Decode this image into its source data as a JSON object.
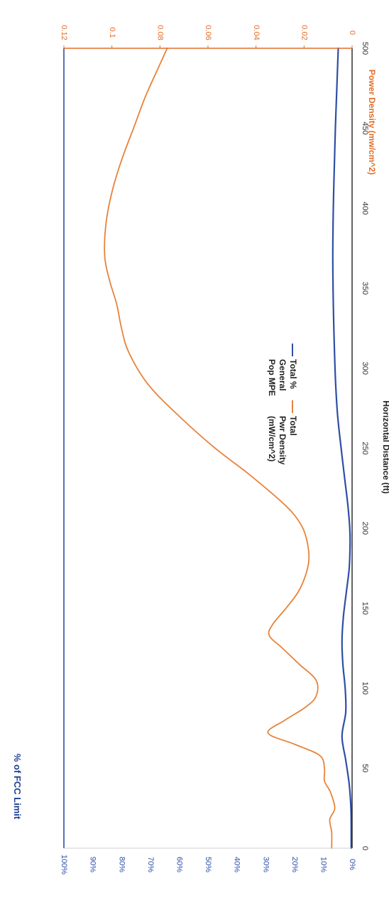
{
  "chart_data": {
    "type": "line",
    "xlabel": "Horizontal Distance (ft)",
    "ylabel_left": "% of FCC Limit",
    "ylabel_right": "Power Density (mw/cm^2)",
    "xlim": [
      0,
      500
    ],
    "ylim_left": [
      0,
      100
    ],
    "ylim_right": [
      0,
      0.12
    ],
    "x_ticks": [
      "0",
      "50",
      "100",
      "150",
      "200",
      "250",
      "300",
      "350",
      "400",
      "450",
      "500"
    ],
    "y_left_ticks": [
      "0%",
      "10%",
      "20%",
      "30%",
      "40%",
      "50%",
      "60%",
      "70%",
      "80%",
      "90%",
      "100%"
    ],
    "y_right_ticks": [
      "0",
      "0.02",
      "0.04",
      "0.06",
      "0.08",
      "0.1",
      "0.12"
    ],
    "legend_position": "top",
    "series": [
      {
        "name_lines": [
          "Total %",
          "General",
          "Pop MPE"
        ],
        "axis": "left",
        "color": "#2e4fa3",
        "x": [
          0,
          10,
          25,
          40,
          55,
          70,
          85,
          100,
          115,
          130,
          145,
          160,
          175,
          190,
          200,
          215,
          230,
          250,
          270,
          290,
          310,
          330,
          350,
          370,
          390,
          410,
          430,
          450,
          470,
          490,
          500
        ],
        "y": [
          0.3,
          0.3,
          0.4,
          1.0,
          2.2,
          3.5,
          2.2,
          2.4,
          3.2,
          3.5,
          3.0,
          2.0,
          1.0,
          0.7,
          0.8,
          1.5,
          2.5,
          3.8,
          5.0,
          5.7,
          6.1,
          6.4,
          6.6,
          6.7,
          6.6,
          6.4,
          6.1,
          5.8,
          5.4,
          5.0,
          4.8
        ]
      },
      {
        "name_lines": [
          "Total",
          "Pwr Density",
          "(mW/cm^2)"
        ],
        "axis": "right",
        "color": "#e8833a",
        "x": [
          0,
          10,
          18,
          25,
          35,
          42,
          50,
          58,
          65,
          72,
          80,
          88,
          95,
          105,
          115,
          125,
          133,
          140,
          150,
          160,
          170,
          180,
          190,
          200,
          210,
          220,
          235,
          250,
          270,
          290,
          310,
          325,
          340,
          355,
          370,
          390,
          410,
          430,
          450,
          470,
          490,
          500
        ],
        "y": [
          0.0085,
          0.0085,
          0.0093,
          0.0072,
          0.009,
          0.0115,
          0.0115,
          0.0135,
          0.024,
          0.035,
          0.028,
          0.0195,
          0.015,
          0.015,
          0.022,
          0.029,
          0.0345,
          0.033,
          0.0275,
          0.0225,
          0.0195,
          0.018,
          0.0185,
          0.0205,
          0.025,
          0.032,
          0.044,
          0.057,
          0.072,
          0.085,
          0.093,
          0.096,
          0.098,
          0.101,
          0.103,
          0.1025,
          0.1,
          0.096,
          0.091,
          0.086,
          0.08,
          0.077
        ]
      }
    ]
  }
}
